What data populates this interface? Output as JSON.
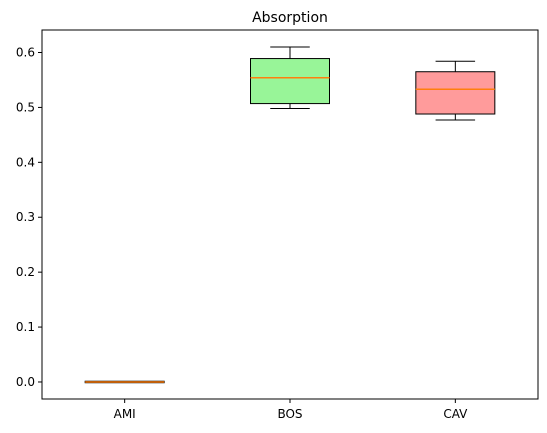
{
  "chart_data": {
    "type": "box",
    "title": "Absorption",
    "xlabel": "",
    "ylabel": "",
    "categories": [
      "AMI",
      "BOS",
      "CAV"
    ],
    "ylim": [
      -0.031,
      0.641
    ],
    "yticks": [
      0.0,
      0.1,
      0.2,
      0.3,
      0.4,
      0.5,
      0.6
    ],
    "ytick_labels": [
      "0.0",
      "0.1",
      "0.2",
      "0.3",
      "0.4",
      "0.5",
      "0.6"
    ],
    "grid": false,
    "boxes": [
      {
        "category": "AMI",
        "whisker_low": 0.0,
        "q1": 0.0,
        "median": 0.0,
        "q3": 0.0,
        "whisker_high": 0.0,
        "fill": "#ffa07a"
      },
      {
        "category": "BOS",
        "whisker_low": 0.498,
        "q1": 0.507,
        "median": 0.554,
        "q3": 0.589,
        "whisker_high": 0.61,
        "fill": "#98f598"
      },
      {
        "category": "CAV",
        "whisker_low": 0.477,
        "q1": 0.488,
        "median": 0.533,
        "q3": 0.565,
        "whisker_high": 0.584,
        "fill": "#ff9b9b"
      }
    ],
    "median_color": "#ff7f0e"
  }
}
